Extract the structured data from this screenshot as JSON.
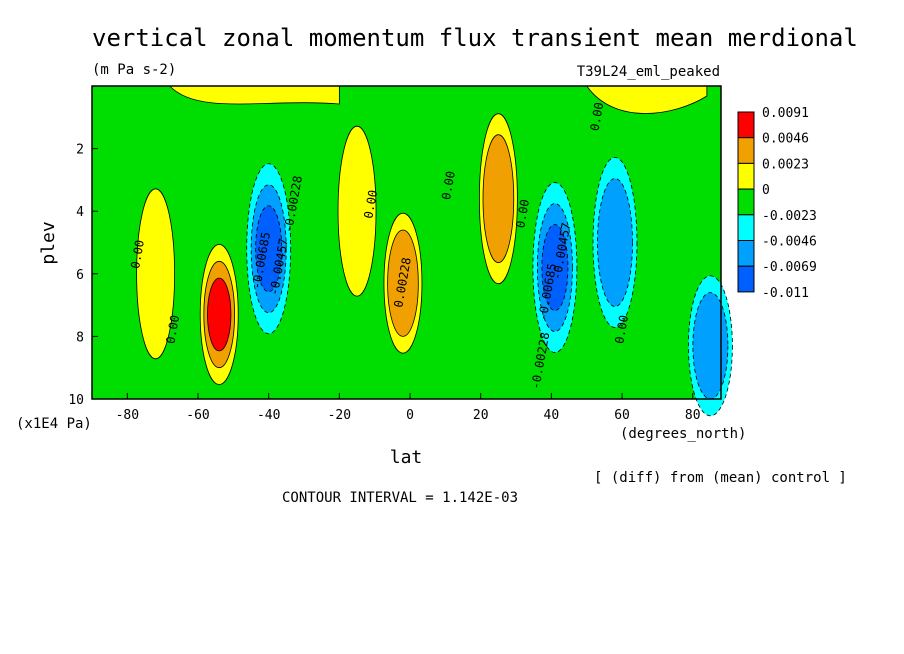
{
  "chart_data": {
    "type": "heatmap",
    "title": "vertical zonal momentum flux transient mean merdional",
    "units": "(m Pa s-2)",
    "run_label": "T39L24_eml_peaked",
    "xlabel": "lat",
    "x_units": "(degrees_north)",
    "ylabel": "plev",
    "y_units": "(x1E4 Pa)",
    "footnote": "[ (diff) from (mean) control ]",
    "contour_interval": "CONTOUR INTERVAL = 1.142E-03",
    "xlim": [
      -90,
      88
    ],
    "ylim": [
      10,
      0
    ],
    "x_ticks": [
      -80,
      -60,
      -40,
      -20,
      0,
      20,
      40,
      60,
      80
    ],
    "x_tick_labels": [
      "-80",
      "-60",
      "-40",
      "-20",
      "0",
      "20",
      "40",
      "60",
      "80"
    ],
    "y_ticks": [
      2,
      4,
      6,
      8,
      10
    ],
    "y_tick_labels": [
      "2",
      "4",
      "6",
      "8",
      "10"
    ],
    "colorbar": {
      "colors": [
        "#ff0000",
        "#f0a000",
        "#ffff00",
        "#00dd00",
        "#00ffff",
        "#00a0ff",
        "#0060ff"
      ],
      "labels": [
        "0.0091",
        "0.0046",
        "0.0023",
        "0",
        "-0.0023",
        "-0.0046",
        "-0.0069",
        "-0.011"
      ]
    },
    "features": [
      {
        "lat": -54,
        "plev": 7.3,
        "peak": 0.0091,
        "kind": "positive"
      },
      {
        "lat": -40,
        "plev": 5.2,
        "peak": -0.0069,
        "kind": "negative"
      },
      {
        "lat": -72,
        "plev": 6.0,
        "peak": 0.0023,
        "kind": "positive"
      },
      {
        "lat": -15,
        "plev": 4.0,
        "peak": 0.0023,
        "kind": "positive"
      },
      {
        "lat": -2,
        "plev": 6.3,
        "peak": 0.0046,
        "kind": "positive"
      },
      {
        "lat": 25,
        "plev": 3.6,
        "peak": 0.0046,
        "kind": "positive"
      },
      {
        "lat": 41,
        "plev": 5.8,
        "peak": -0.0069,
        "kind": "negative"
      },
      {
        "lat": 58,
        "plev": 5.0,
        "peak": -0.0046,
        "kind": "negative"
      },
      {
        "lat": 85,
        "plev": 8.3,
        "peak": -0.0046,
        "kind": "negative"
      }
    ],
    "contour_labels": [
      {
        "text": "0.00",
        "lat": -76,
        "plev": 5.4
      },
      {
        "text": "0.00",
        "lat": -66,
        "plev": 7.8
      },
      {
        "text": "-0.00685",
        "lat": -41,
        "plev": 5.6
      },
      {
        "text": "-0.00457",
        "lat": -36,
        "plev": 5.8
      },
      {
        "text": "-0.00228",
        "lat": -32,
        "plev": 3.8
      },
      {
        "text": "0.00",
        "lat": -10,
        "plev": 3.8
      },
      {
        "text": "0.00",
        "lat": 12,
        "plev": 3.2
      },
      {
        "text": "0.00228",
        "lat": -1,
        "plev": 6.3
      },
      {
        "text": "0.00",
        "lat": 33,
        "plev": 4.1
      },
      {
        "text": "-0.00685",
        "lat": 40,
        "plev": 6.6
      },
      {
        "text": "-0.00457",
        "lat": 44,
        "plev": 5.3
      },
      {
        "text": "-0.00228",
        "lat": 38,
        "plev": 8.8
      },
      {
        "text": "0.00",
        "lat": 61,
        "plev": 7.8
      },
      {
        "text": "0.00",
        "lat": 54,
        "plev": 1.0
      }
    ]
  }
}
